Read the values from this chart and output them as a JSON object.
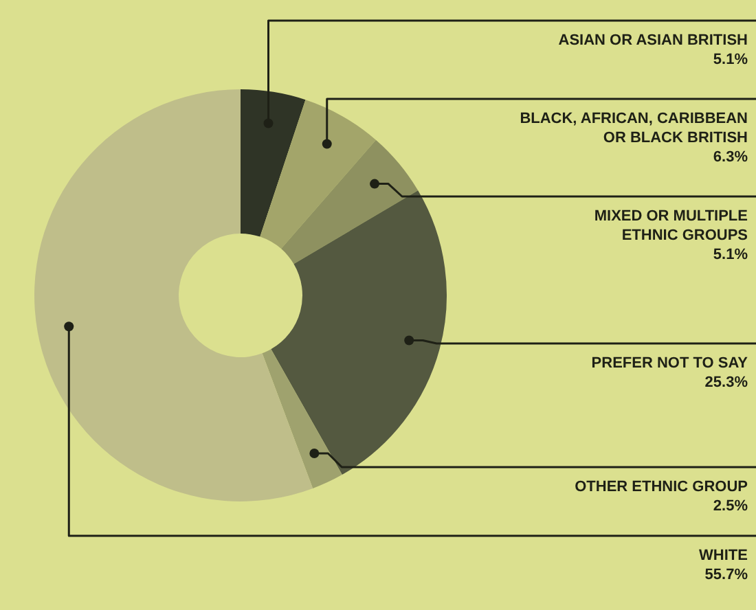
{
  "chart_data": {
    "type": "donut",
    "categories": [
      "ASIAN OR ASIAN BRITISH",
      "BLACK, AFRICAN, CARIBBEAN OR BLACK BRITISH",
      "MIXED OR MULTIPLE ETHNIC GROUPS",
      "PREFER NOT TO SAY",
      "OTHER ETHNIC GROUP",
      "WHITE"
    ],
    "values": [
      5.1,
      6.3,
      5.1,
      25.3,
      2.5,
      55.7
    ],
    "value_labels": [
      "5.1%",
      "6.3%",
      "5.1%",
      "25.3%",
      "2.5%",
      "55.7%"
    ],
    "colors": [
      "#2f3426",
      "#a3a56a",
      "#8e9160",
      "#545940",
      "#9fa26e",
      "#bfbe8a"
    ],
    "legend": false
  }
}
